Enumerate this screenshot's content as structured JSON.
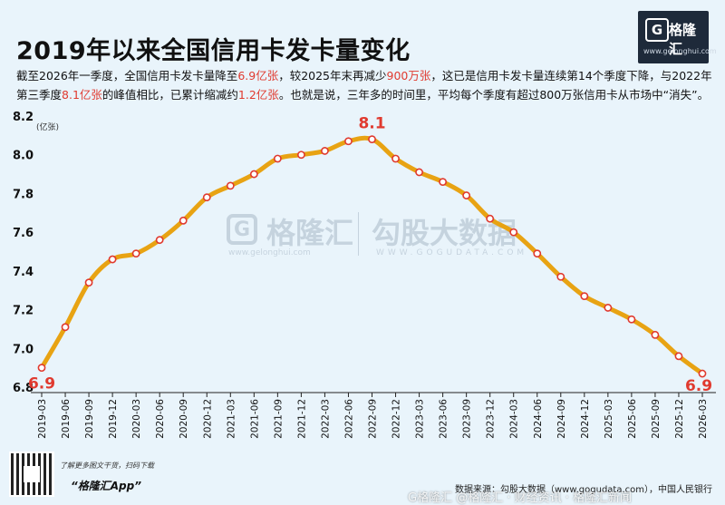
{
  "header": {
    "title": "2019年以来全国信用卡发卡量变化",
    "logo_text": "格隆汇",
    "logo_mark": "G",
    "logo_url": "www.gelonghui.com"
  },
  "description": {
    "line1_parts": [
      "截至2026年一季度，全国信用卡发卡量降至",
      "6.9亿张",
      "，较2025年末再减少",
      "900万张",
      "，这已是信用卡发卡量连续第14个季度下降，与2022年"
    ],
    "line2_parts": [
      "第三季度",
      "8.1亿张",
      "的峰值相比，已累计缩减约",
      "1.2亿张",
      "。也就是说，三年多的时间里，平均每个季度有超过800万张信用卡从市场中“消失”。"
    ]
  },
  "watermark": {
    "mark": "G",
    "name": "格隆汇",
    "url": "www.gelonghui.com",
    "name2": "勾股大数据",
    "url2": "WWW.GOGUDATA.COM",
    "bottom": "G格隆汇 @格隆汇 · 财经资讯 · 格隆汇新闻"
  },
  "chart_data": {
    "type": "line",
    "title": "2019年以来全国信用卡发卡量变化",
    "ylabel": "(亿张)",
    "xlabel": "",
    "ylim": [
      6.8,
      8.2
    ],
    "yticks": [
      "6.8",
      "7.0",
      "7.2",
      "7.4",
      "7.6",
      "7.8",
      "8.0",
      "8.2"
    ],
    "categories": [
      "2019-03",
      "2019-06",
      "2019-09",
      "2019-12",
      "2020-03",
      "2020-06",
      "2020-09",
      "2020-12",
      "2021-03",
      "2021-06",
      "2021-09",
      "2021-12",
      "2022-03",
      "2022-06",
      "2022-09",
      "2022-12",
      "2023-03",
      "2023-06",
      "2023-09",
      "2023-12",
      "2024-03",
      "2024-06",
      "2024-09",
      "2024-12",
      "2025-03",
      "2025-06",
      "2025-09",
      "2025-12",
      "2026-03"
    ],
    "values": [
      6.9,
      7.11,
      7.34,
      7.46,
      7.49,
      7.56,
      7.66,
      7.78,
      7.84,
      7.9,
      7.98,
      8.0,
      8.02,
      8.07,
      8.08,
      7.98,
      7.91,
      7.86,
      7.79,
      7.67,
      7.6,
      7.49,
      7.37,
      7.27,
      7.21,
      7.15,
      7.07,
      6.96,
      6.87
    ],
    "annotations": [
      {
        "index": 0,
        "label": "6.9"
      },
      {
        "index": 14,
        "label": "8.1"
      },
      {
        "index": 28,
        "label": "6.9"
      }
    ],
    "line_color": "#e8a313",
    "accent_color": "#e03a2f",
    "grid": false
  },
  "footer": {
    "note1": "了解更多图文干货，扫码下载",
    "note2": "“格隆汇App”",
    "source": "数据来源：勾股大数据（www.gogudata.com），中国人民银行"
  }
}
